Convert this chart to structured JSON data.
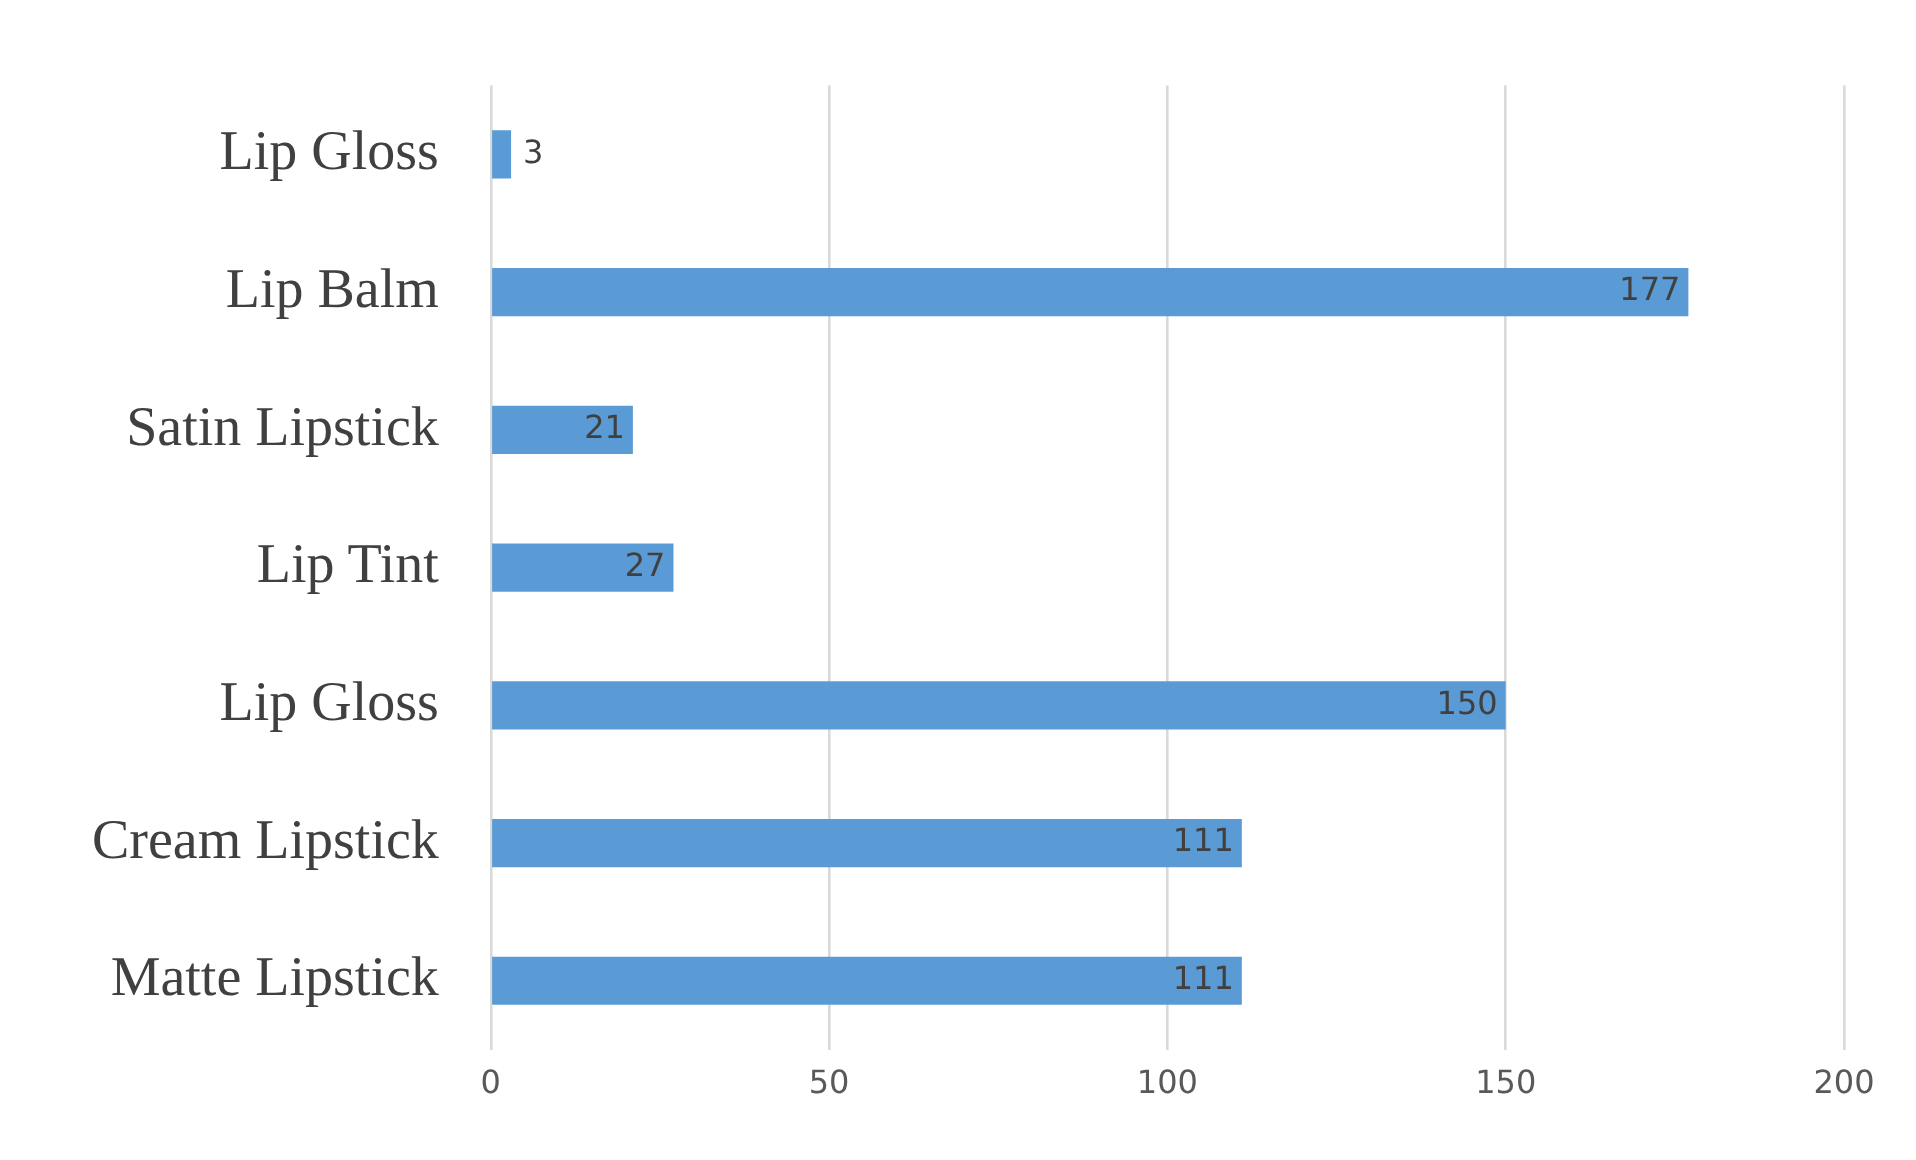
{
  "chart_data": {
    "type": "bar",
    "orientation": "horizontal",
    "categories": [
      "Lip Gloss",
      "Lip Balm",
      "Satin Lipstick",
      "Lip Tint",
      "Lip Gloss",
      "Cream Lipstick",
      "Matte Lipstick"
    ],
    "values": [
      3,
      177,
      21,
      27,
      150,
      111,
      111
    ],
    "color": "#5b9bd5",
    "xlim": [
      0,
      200
    ],
    "xticks": [
      0,
      50,
      100,
      150,
      200
    ],
    "grid": "x",
    "data_labels": true,
    "legend": false
  }
}
